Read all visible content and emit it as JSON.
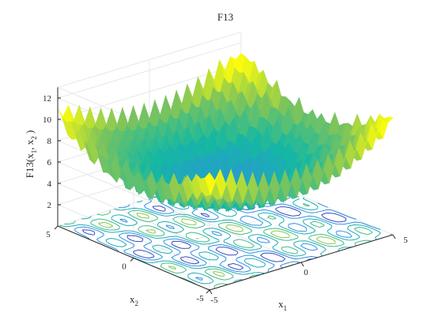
{
  "chart_data": {
    "type": "surface3d",
    "title": "F13",
    "xlabel": {
      "base": "x",
      "sub": "1"
    },
    "ylabel": {
      "base": "x",
      "sub": "2"
    },
    "zlabel": {
      "prefix": "F13(x",
      "sub1": "1",
      "mid": ", x",
      "sub2": "2",
      "suffix": " )"
    },
    "x_range": [
      -5,
      5
    ],
    "y_range": [
      -5,
      5
    ],
    "z_range": [
      0,
      13
    ],
    "x_ticks": [
      -5,
      0,
      5
    ],
    "y_ticks": [
      -5,
      0,
      5
    ],
    "z_ticks": [
      2,
      4,
      6,
      8,
      10,
      12
    ],
    "grid": true,
    "colormap": "parula",
    "contour_on_floor": true,
    "corner_values": {
      "x_neg_y_neg": 9,
      "x_neg_y_pos": 9,
      "x_pos_y_pos": 9.5,
      "x_pos_y_neg": 9.5
    },
    "center_value": 3,
    "colors": {
      "low": "#3e26a8",
      "mid_low": "#2f8fe6",
      "mid": "#15b8a2",
      "mid_high": "#80c45a",
      "high": "#f9fb0e",
      "grid": "#e2e2e2",
      "axis": "#262626"
    }
  }
}
